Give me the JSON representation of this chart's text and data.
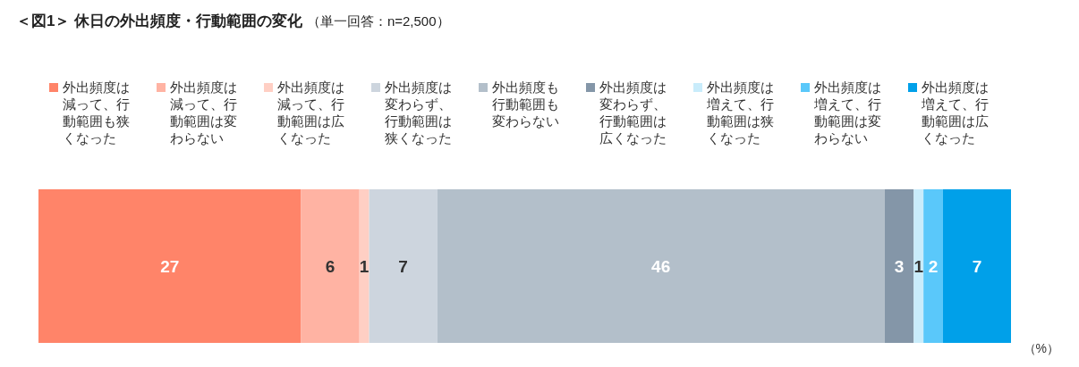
{
  "chart_data": {
    "type": "bar",
    "orientation": "horizontal",
    "stacked": true,
    "data_labels": true,
    "legend": "top",
    "title": "＜図1＞ 休日の外出頻度・行動範囲の変化",
    "subtitle": "（単一回答：n=2,500）",
    "annotations": [
      "（%）"
    ],
    "categories": [
      null
    ],
    "series": [
      {
        "name": "外出頻度は減って、行動範囲も狭くなった",
        "color": "#ff8469",
        "values": [
          27
        ]
      },
      {
        "name": "外出頻度は減って、行動範囲は変わらない",
        "color": "#ffb3a3",
        "values": [
          6
        ]
      },
      {
        "name": "外出頻度は減って、行動範囲は広くなった",
        "color": "#ffcfc4",
        "values": [
          1
        ]
      },
      {
        "name": "外出頻度は変わらず、行動範囲は狭くなった",
        "color": "#cdd5de",
        "values": [
          7
        ]
      },
      {
        "name": "外出頻度も行動範囲も変わらない",
        "color": "#b3bfca",
        "values": [
          46
        ]
      },
      {
        "name": "外出頻度は変わらず、行動範囲は広くなった",
        "color": "#8496a8",
        "values": [
          3
        ]
      },
      {
        "name": "外出頻度は増えて、行動範囲は狭くなった",
        "color": "#c9ecfb",
        "values": [
          1
        ]
      },
      {
        "name": "外出頻度は増えて、行動範囲は変わらない",
        "color": "#5ac8fa",
        "values": [
          2
        ]
      },
      {
        "name": "外出頻度は増えて、行動範囲は広くなった",
        "color": "#00a0e9",
        "values": [
          7
        ]
      }
    ]
  }
}
